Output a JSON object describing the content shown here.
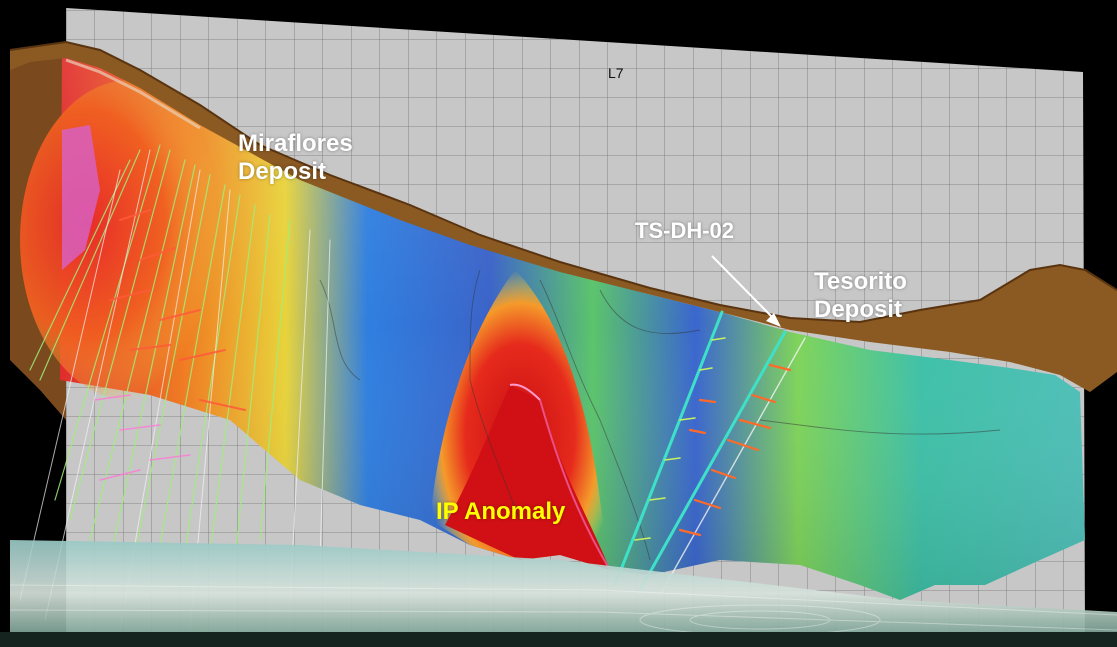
{
  "grid_label": "L7",
  "labels": {
    "miraflores_line1": "Miraflores",
    "miraflores_line2": "Deposit",
    "drillhole": "TS-DH-02",
    "tesorito_line1": "Tesorito",
    "tesorito_line2": "Deposit",
    "ip_anomaly": "IP Anomaly"
  },
  "colors": {
    "background": "#000000",
    "grid_panel": "#c7c7c7",
    "topography": "#8a5a22",
    "annotation_white": "#ffffff",
    "annotation_yellow": "#ffff00",
    "ip_high": "#d81818",
    "ip_low": "#2050c0"
  }
}
